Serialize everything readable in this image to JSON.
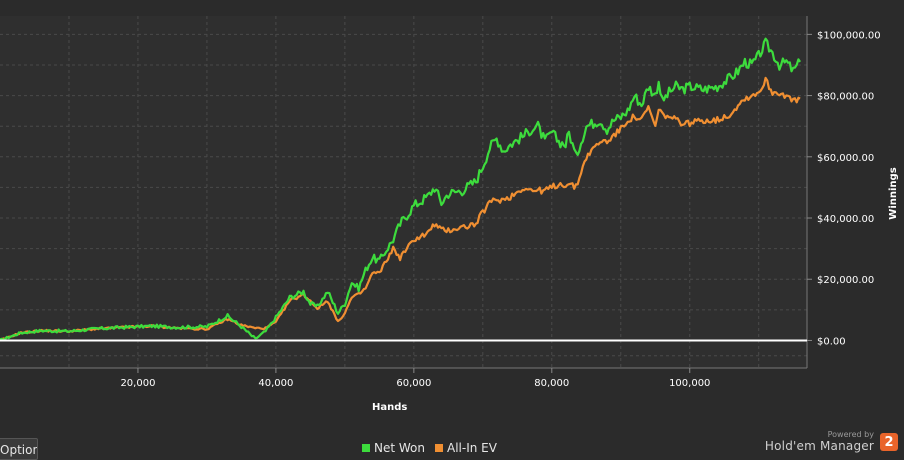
{
  "chart_data": {
    "type": "line",
    "xlabel": "Hands",
    "ylabel": "Winnings",
    "xlim": [
      0,
      117000
    ],
    "ylim": [
      -9000,
      106000
    ],
    "x_ticks": [
      20000,
      40000,
      60000,
      80000,
      100000
    ],
    "x_tick_labels": [
      "20,000",
      "40,000",
      "60,000",
      "80,000",
      "100,000"
    ],
    "y_ticks": [
      0,
      20000,
      40000,
      60000,
      80000,
      100000
    ],
    "y_tick_labels": [
      "$0.00",
      "$20,000.00",
      "$40,000.00",
      "$60,000.00",
      "$80,000.00",
      "$100,000.00"
    ],
    "grid": true,
    "legend_position": "bottom",
    "series": [
      {
        "name": "Net Won",
        "color": "#3ddc3d",
        "points": [
          [
            0,
            0
          ],
          [
            3000,
            2500
          ],
          [
            6000,
            3200
          ],
          [
            10000,
            3000
          ],
          [
            14000,
            3800
          ],
          [
            18000,
            4300
          ],
          [
            22000,
            4700
          ],
          [
            26000,
            4300
          ],
          [
            30000,
            4500
          ],
          [
            33000,
            8000
          ],
          [
            35000,
            4500
          ],
          [
            37000,
            500
          ],
          [
            38500,
            3000
          ],
          [
            40000,
            7500
          ],
          [
            42000,
            14000
          ],
          [
            44000,
            16000
          ],
          [
            45000,
            12000
          ],
          [
            46000,
            11000
          ],
          [
            47500,
            16000
          ],
          [
            49000,
            9000
          ],
          [
            50000,
            12000
          ],
          [
            51000,
            19000
          ],
          [
            52000,
            17000
          ],
          [
            53000,
            23000
          ],
          [
            54000,
            27000
          ],
          [
            55000,
            26000
          ],
          [
            57000,
            33000
          ],
          [
            58000,
            38000
          ],
          [
            60000,
            44000
          ],
          [
            62000,
            47000
          ],
          [
            63000,
            50000
          ],
          [
            64000,
            45000
          ],
          [
            65000,
            48000
          ],
          [
            67000,
            49000
          ],
          [
            69000,
            52000
          ],
          [
            70000,
            57000
          ],
          [
            71000,
            63000
          ],
          [
            72000,
            66000
          ],
          [
            73000,
            62000
          ],
          [
            74000,
            64000
          ],
          [
            76000,
            67000
          ],
          [
            77000,
            69000
          ],
          [
            78000,
            70000
          ],
          [
            79000,
            65000
          ],
          [
            80000,
            68000
          ],
          [
            81000,
            65000
          ],
          [
            82000,
            64000
          ],
          [
            82500,
            68000
          ],
          [
            83500,
            60000
          ],
          [
            85000,
            70000
          ],
          [
            87000,
            72000
          ],
          [
            88000,
            69000
          ],
          [
            89000,
            72000
          ],
          [
            90000,
            73000
          ],
          [
            91000,
            75000
          ],
          [
            92000,
            80000
          ],
          [
            93000,
            77000
          ],
          [
            94000,
            83000
          ],
          [
            95000,
            80000
          ],
          [
            95500,
            85000
          ],
          [
            96000,
            78000
          ],
          [
            97000,
            81000
          ],
          [
            98000,
            83000
          ],
          [
            99000,
            82000
          ],
          [
            100000,
            83000
          ],
          [
            102000,
            82000
          ],
          [
            104000,
            83000
          ],
          [
            106000,
            86000
          ],
          [
            107000,
            88000
          ],
          [
            108000,
            91000
          ],
          [
            109000,
            90000
          ],
          [
            110000,
            93000
          ],
          [
            111000,
            97000
          ],
          [
            112000,
            94000
          ],
          [
            113000,
            90000
          ],
          [
            114000,
            91000
          ],
          [
            115000,
            88000
          ],
          [
            116000,
            91000
          ]
        ]
      },
      {
        "name": "All-In EV",
        "color": "#f08f32",
        "points": [
          [
            0,
            0
          ],
          [
            3000,
            2500
          ],
          [
            6000,
            3200
          ],
          [
            10000,
            3000
          ],
          [
            14000,
            3800
          ],
          [
            18000,
            4300
          ],
          [
            22000,
            4700
          ],
          [
            26000,
            4000
          ],
          [
            30000,
            3700
          ],
          [
            33000,
            7000
          ],
          [
            35000,
            5000
          ],
          [
            37000,
            4000
          ],
          [
            38500,
            4000
          ],
          [
            40000,
            6000
          ],
          [
            42000,
            13000
          ],
          [
            44000,
            15000
          ],
          [
            45000,
            13000
          ],
          [
            46000,
            10500
          ],
          [
            47500,
            13000
          ],
          [
            49000,
            6000
          ],
          [
            50000,
            9000
          ],
          [
            51000,
            14000
          ],
          [
            52000,
            15000
          ],
          [
            53000,
            17000
          ],
          [
            54000,
            22000
          ],
          [
            55000,
            22000
          ],
          [
            57000,
            30000
          ],
          [
            58000,
            27000
          ],
          [
            60000,
            33000
          ],
          [
            62000,
            35000
          ],
          [
            63000,
            38000
          ],
          [
            64000,
            36000
          ],
          [
            65000,
            36000
          ],
          [
            67000,
            37000
          ],
          [
            69000,
            38000
          ],
          [
            70000,
            42000
          ],
          [
            71000,
            45000
          ],
          [
            72000,
            46000
          ],
          [
            73000,
            46000
          ],
          [
            74000,
            47000
          ],
          [
            76000,
            50000
          ],
          [
            77000,
            49000
          ],
          [
            78000,
            49000
          ],
          [
            79000,
            49000
          ],
          [
            80000,
            50000
          ],
          [
            81000,
            51000
          ],
          [
            82000,
            51000
          ],
          [
            82500,
            51000
          ],
          [
            83500,
            50000
          ],
          [
            85000,
            60000
          ],
          [
            87000,
            65000
          ],
          [
            88000,
            65000
          ],
          [
            89000,
            67000
          ],
          [
            90000,
            69000
          ],
          [
            91000,
            72000
          ],
          [
            92000,
            73000
          ],
          [
            93000,
            72000
          ],
          [
            94000,
            76000
          ],
          [
            95000,
            70000
          ],
          [
            95500,
            75000
          ],
          [
            96000,
            74000
          ],
          [
            97000,
            73000
          ],
          [
            98000,
            72000
          ],
          [
            99000,
            71000
          ],
          [
            100000,
            71000
          ],
          [
            102000,
            72000
          ],
          [
            104000,
            72000
          ],
          [
            106000,
            74000
          ],
          [
            107000,
            77000
          ],
          [
            108000,
            79000
          ],
          [
            109000,
            80000
          ],
          [
            110000,
            81000
          ],
          [
            111000,
            85000
          ],
          [
            112000,
            81000
          ],
          [
            113000,
            81000
          ],
          [
            114000,
            80000
          ],
          [
            115000,
            78000
          ],
          [
            116000,
            79000
          ]
        ]
      }
    ]
  },
  "ui": {
    "options_button": "Options",
    "powered_by": "Powered by",
    "brand_name": "Hold'em Manager",
    "brand_badge": "2"
  }
}
